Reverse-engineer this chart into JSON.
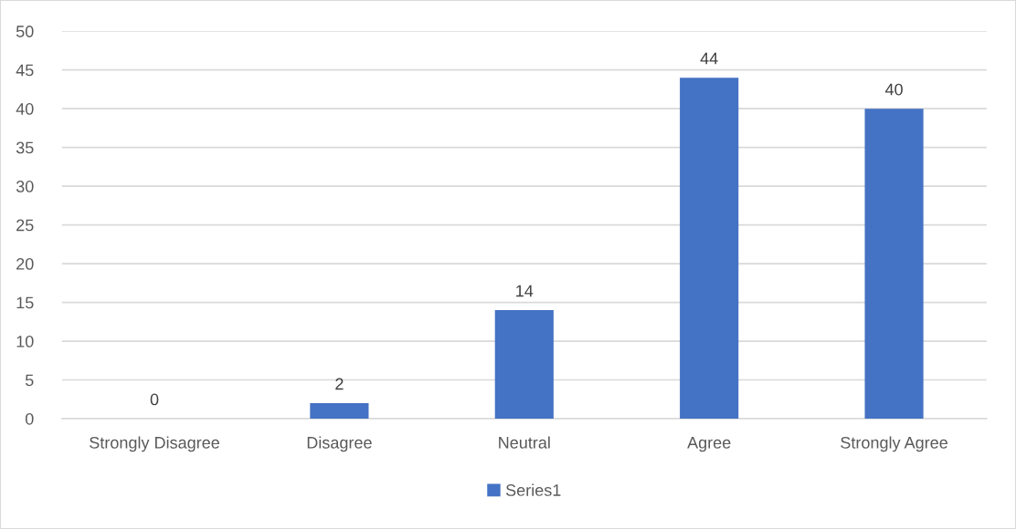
{
  "chart_data": {
    "type": "bar",
    "categories": [
      "Strongly Disagree",
      "Disagree",
      "Neutral",
      "Agree",
      "Strongly Agree"
    ],
    "series": [
      {
        "name": "Series1",
        "color": "#4472c4",
        "values": [
          0,
          2,
          14,
          44,
          40
        ]
      }
    ],
    "ylim": [
      0,
      50
    ],
    "yticks": [
      0,
      5,
      10,
      15,
      20,
      25,
      30,
      35,
      40,
      45,
      50
    ],
    "grid": "y",
    "legend": "bottom",
    "data_labels": true
  }
}
